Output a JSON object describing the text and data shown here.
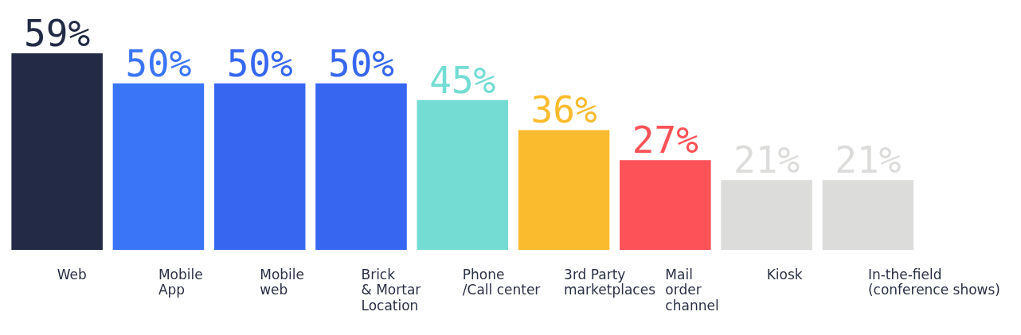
{
  "chart_data": {
    "type": "bar",
    "relative": false,
    "categories": [
      "Web",
      "Mobile\nApp",
      "Mobile\nweb",
      "Brick\n& Mortar\nLocation",
      "Phone\n/Call center",
      "3rd Party\nmarketplaces",
      "Mail\norder\nchannel",
      "Kiosk",
      "In-the-field\n(conference shows)"
    ],
    "values": [
      59,
      50,
      50,
      50,
      45,
      36,
      27,
      21,
      21
    ],
    "value_labels": [
      "59%",
      "50%",
      "50%",
      "50%",
      "45%",
      "36%",
      "27%",
      "21%",
      "21%"
    ],
    "colors": [
      "#222a45",
      "#3a75f7",
      "#3767f0",
      "#3767f0",
      "#74dcd3",
      "#fbbb2e",
      "#fd5257",
      "#dcdcda",
      "#dcdcdb"
    ],
    "grid": false,
    "legend": false
  }
}
